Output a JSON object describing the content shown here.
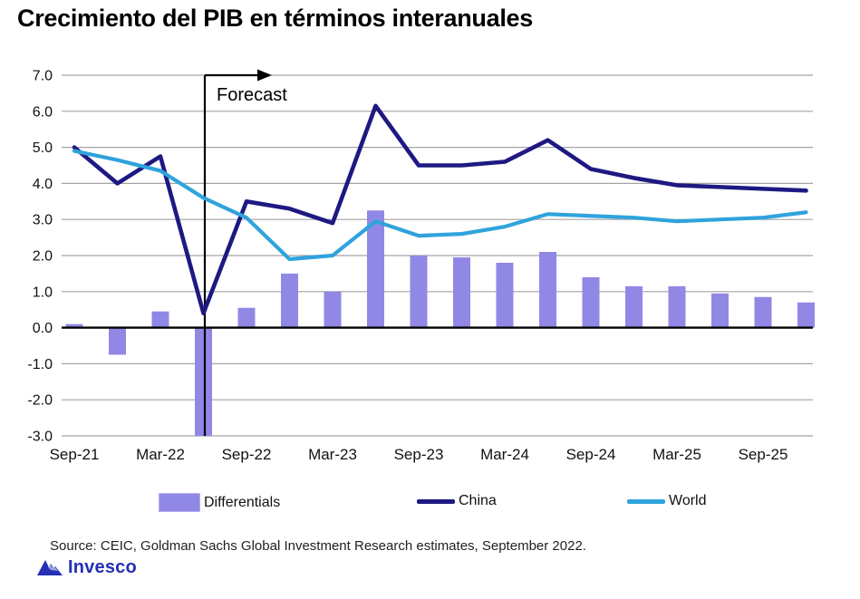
{
  "title": "Crecimiento del PIB en términos interanuales",
  "chart_data": {
    "type": "combo-bar-line",
    "categories": [
      "Sep-21",
      "Dec-21",
      "Mar-22",
      "Jun-22",
      "Sep-22",
      "Dec-22",
      "Mar-23",
      "Jun-23",
      "Sep-23",
      "Dec-23",
      "Mar-24",
      "Jun-24",
      "Sep-24",
      "Dec-24",
      "Mar-25",
      "Jun-25",
      "Sep-25",
      "Dec-25"
    ],
    "x_tick_labels": [
      "Sep-21",
      "Mar-22",
      "Sep-22",
      "Mar-23",
      "Sep-23",
      "Mar-24",
      "Sep-24",
      "Mar-25",
      "Sep-25"
    ],
    "ylim": [
      -3,
      7
    ],
    "y_ticks": [
      7,
      6,
      5,
      4,
      3,
      2,
      1,
      0,
      -1,
      -2,
      -3
    ],
    "grid": true,
    "series": [
      {
        "name": "Differentials",
        "type": "bar",
        "color": "#9188e6",
        "values": [
          0.1,
          -0.75,
          0.45,
          -3.0,
          0.55,
          1.5,
          1.0,
          3.25,
          2.0,
          1.95,
          1.8,
          2.1,
          1.4,
          1.15,
          1.15,
          0.95,
          0.85,
          0.7
        ]
      },
      {
        "name": "China",
        "type": "line",
        "color": "#1e1982",
        "values": [
          5.0,
          4.0,
          4.75,
          0.4,
          3.5,
          3.3,
          2.9,
          6.15,
          4.5,
          4.5,
          4.6,
          5.2,
          4.4,
          4.15,
          3.95,
          3.9,
          3.85,
          3.8
        ]
      },
      {
        "name": "World",
        "type": "line",
        "color": "#2fa3dc",
        "values": [
          4.9,
          4.65,
          4.35,
          3.6,
          3.05,
          1.9,
          2.0,
          2.95,
          2.55,
          2.6,
          2.8,
          3.15,
          3.1,
          3.05,
          2.95,
          3.0,
          3.05,
          3.2
        ]
      }
    ],
    "annotation": {
      "label": "Forecast",
      "category": "Jun-22"
    },
    "legend_position": "bottom"
  },
  "footer": {
    "source": "Source: CEIC, Goldman Sachs Global Investment Research estimates, September 2022.",
    "brand": "Invesco"
  },
  "colors": {
    "bar": "#9188e6",
    "china_line": "#1e1982",
    "world_line": "#2fa3dc",
    "grid": "#a3a3a3",
    "zero_line": "#000000",
    "forecast": "#000000",
    "axis_text": "#111111",
    "brand_blue": "#2430b4"
  }
}
